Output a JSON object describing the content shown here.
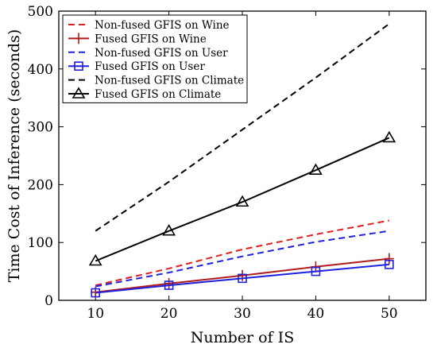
{
  "chart_data": {
    "type": "line",
    "xlabel": "Number of IS",
    "ylabel": "Time Cost of Inference (seconds)",
    "xlim": [
      5,
      55
    ],
    "ylim": [
      0,
      500
    ],
    "x_ticks": [
      10,
      20,
      30,
      40,
      50
    ],
    "y_ticks": [
      0,
      100,
      200,
      300,
      400,
      500
    ],
    "grid": false,
    "legend_position": "top-left",
    "series": [
      {
        "name": "Non-fused GFIS on Wine",
        "color": "#e02020",
        "dash": true,
        "marker": "none",
        "x": [
          10,
          20,
          30,
          40,
          50
        ],
        "y": [
          26,
          55,
          88,
          114,
          138
        ]
      },
      {
        "name": "Fused GFIS on Wine",
        "color": "#b01c1c",
        "dash": false,
        "marker": "plus",
        "x": [
          10,
          20,
          30,
          40,
          50
        ],
        "y": [
          14,
          29,
          43,
          58,
          72
        ]
      },
      {
        "name": "Non-fused GFIS on User",
        "color": "#2020dd",
        "dash": true,
        "marker": "none",
        "x": [
          10,
          20,
          30,
          40,
          50
        ],
        "y": [
          24,
          48,
          76,
          101,
          120
        ]
      },
      {
        "name": "Fused GFIS on User",
        "color": "#2020dd",
        "dash": false,
        "marker": "square",
        "x": [
          10,
          20,
          30,
          40,
          50
        ],
        "y": [
          13,
          26,
          38,
          50,
          62
        ]
      },
      {
        "name": "Non-fused GFIS on Climate",
        "color": "#000000",
        "dash": true,
        "marker": "none",
        "x": [
          10,
          20,
          30,
          40,
          50
        ],
        "y": [
          120,
          205,
          295,
          385,
          478
        ]
      },
      {
        "name": "Fused GFIS on Climate",
        "color": "#000000",
        "dash": false,
        "marker": "triangle",
        "x": [
          10,
          20,
          30,
          40,
          50
        ],
        "y": [
          68,
          120,
          170,
          225,
          281
        ]
      }
    ]
  }
}
